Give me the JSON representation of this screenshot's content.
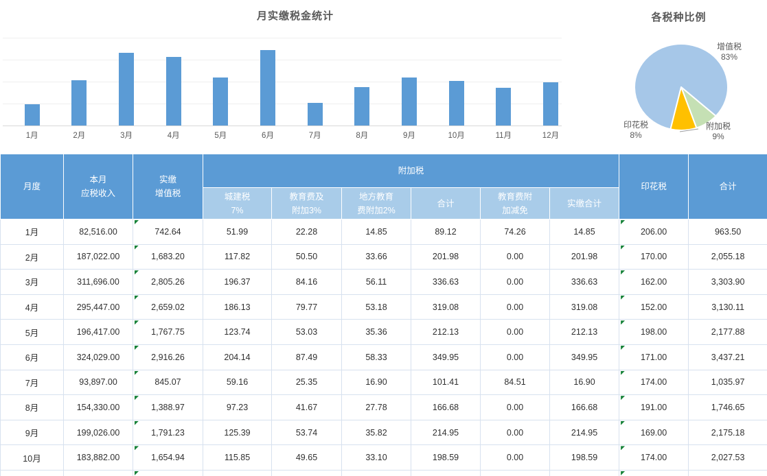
{
  "colors": {
    "bar_blue": "#5B9BD5",
    "pie_blue": "#A6C7E8",
    "pie_green": "#C5E0B4",
    "pie_orange": "#FFC000",
    "header_bg": "#5B9BD5",
    "subheader_bg": "#A9CCE9",
    "error_indicator_green": "#178239",
    "title_gray": "#595959"
  },
  "chart_data": [
    {
      "type": "bar",
      "title": "月实缴税金统计",
      "categories": [
        "1月",
        "2月",
        "3月",
        "4月",
        "5月",
        "6月",
        "7月",
        "8月",
        "9月",
        "10月",
        "11月",
        "12月"
      ],
      "values": [
        963.5,
        2055.18,
        3303.9,
        3130.11,
        2177.88,
        3437.21,
        1035.97,
        1746.65,
        2175.18,
        2027.53,
        1713,
        1973
      ],
      "xlabel": "",
      "ylabel": "",
      "ylim": [
        0,
        4000
      ],
      "gridline_step": 1000,
      "grid": "on",
      "y_tick_labels_visible": false,
      "bar_color": "#5B9BD5"
    },
    {
      "type": "pie",
      "title": "各税种比例",
      "slices": [
        {
          "label": "增值税",
          "pct": 83,
          "color": "#A6C7E8"
        },
        {
          "label": "印花税",
          "pct": 8,
          "color": "#C5E0B4"
        },
        {
          "label": "附加税",
          "pct": 9,
          "color": "#FFC000"
        }
      ],
      "rotation_deg": 193.2,
      "legend": "none",
      "labels_position": "outside"
    }
  ],
  "table": {
    "surtax_group_label": "附加税",
    "columns": [
      "月度",
      "本月\n应税收入",
      "实缴\n增值税",
      "城建税\n7%",
      "教育费及\n附加3%",
      "地方教育\n费附加2%",
      "合计",
      "教育费附\n加减免",
      "实缴合计",
      "印花税",
      "合计"
    ],
    "error_indicator_columns": [
      2,
      9
    ],
    "rows": [
      [
        "1月",
        "82,516.00",
        "742.64",
        "51.99",
        "22.28",
        "14.85",
        "89.12",
        "74.26",
        "14.85",
        "206.00",
        "963.50"
      ],
      [
        "2月",
        "187,022.00",
        "1,683.20",
        "117.82",
        "50.50",
        "33.66",
        "201.98",
        "0.00",
        "201.98",
        "170.00",
        "2,055.18"
      ],
      [
        "3月",
        "311,696.00",
        "2,805.26",
        "196.37",
        "84.16",
        "56.11",
        "336.63",
        "0.00",
        "336.63",
        "162.00",
        "3,303.90"
      ],
      [
        "4月",
        "295,447.00",
        "2,659.02",
        "186.13",
        "79.77",
        "53.18",
        "319.08",
        "0.00",
        "319.08",
        "152.00",
        "3,130.11"
      ],
      [
        "5月",
        "196,417.00",
        "1,767.75",
        "123.74",
        "53.03",
        "35.36",
        "212.13",
        "0.00",
        "212.13",
        "198.00",
        "2,177.88"
      ],
      [
        "6月",
        "324,029.00",
        "2,916.26",
        "204.14",
        "87.49",
        "58.33",
        "349.95",
        "0.00",
        "349.95",
        "171.00",
        "3,437.21"
      ],
      [
        "7月",
        "93,897.00",
        "845.07",
        "59.16",
        "25.35",
        "16.90",
        "101.41",
        "84.51",
        "16.90",
        "174.00",
        "1,035.97"
      ],
      [
        "8月",
        "154,330.00",
        "1,388.97",
        "97.23",
        "41.67",
        "27.78",
        "166.68",
        "0.00",
        "166.68",
        "191.00",
        "1,746.65"
      ],
      [
        "9月",
        "199,026.00",
        "1,791.23",
        "125.39",
        "53.74",
        "35.82",
        "214.95",
        "0.00",
        "214.95",
        "169.00",
        "2,175.18"
      ],
      [
        "10月",
        "183,882.00",
        "1,654.94",
        "115.85",
        "49.65",
        "33.10",
        "198.59",
        "0.00",
        "198.59",
        "174.00",
        "2,027.53"
      ]
    ]
  }
}
